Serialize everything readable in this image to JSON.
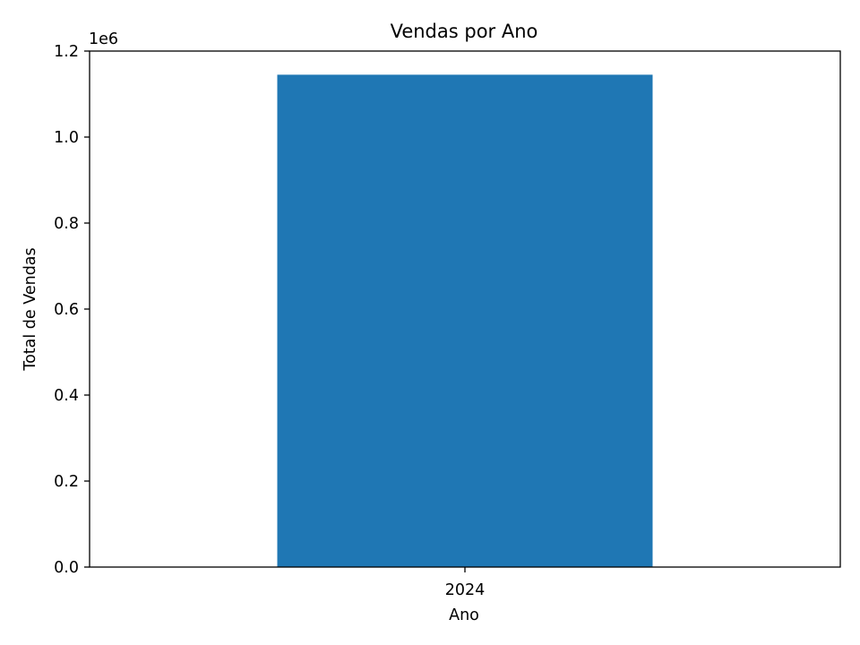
{
  "chart_data": {
    "type": "bar",
    "title": "Vendas por Ano",
    "xlabel": "Ano",
    "ylabel": "Total de Vendas",
    "categories": [
      "2024"
    ],
    "values": [
      1145000
    ],
    "ylim": [
      0,
      1200000
    ],
    "y_scale_factor": "1e6",
    "y_ticks": [
      {
        "value": 0,
        "label": "0.0"
      },
      {
        "value": 200000,
        "label": "0.2"
      },
      {
        "value": 400000,
        "label": "0.4"
      },
      {
        "value": 600000,
        "label": "0.6"
      },
      {
        "value": 800000,
        "label": "0.8"
      },
      {
        "value": 1000000,
        "label": "1.0"
      },
      {
        "value": 1200000,
        "label": "1.2"
      }
    ],
    "grid": false,
    "legend": "none",
    "colors": {
      "bar": "#1f77b4",
      "axes": "#000000",
      "background": "#ffffff"
    }
  }
}
